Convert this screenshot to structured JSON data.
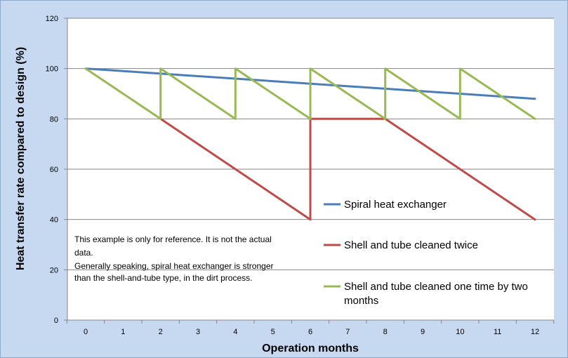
{
  "chart_data": {
    "type": "line",
    "xlabel": "Operation months",
    "ylabel": "Heat transfer rate compared to design  (%)",
    "xlim": [
      0,
      12
    ],
    "ylim": [
      0,
      120
    ],
    "x_ticks": [
      0,
      1,
      2,
      3,
      4,
      5,
      6,
      7,
      8,
      9,
      10,
      11,
      12
    ],
    "y_ticks": [
      0,
      20,
      40,
      60,
      80,
      100,
      120
    ],
    "grid": "horizontal",
    "legend_position": "right",
    "series": [
      {
        "name": "Spiral heat exchanger",
        "color": "#4a7ebb",
        "x": [
          0,
          12
        ],
        "y": [
          100,
          88
        ]
      },
      {
        "name": "Shell and tube cleaned twice",
        "color": "#be4b48",
        "x": [
          2,
          6,
          6,
          8,
          12
        ],
        "y": [
          80,
          40,
          80,
          80,
          40
        ]
      },
      {
        "name": "Shell and tube cleaned one time by two months",
        "color": "#98b954",
        "x": [
          0,
          2,
          2,
          4,
          4,
          6,
          6,
          8,
          8,
          10,
          10,
          12
        ],
        "y": [
          100,
          80,
          100,
          80,
          100,
          80,
          100,
          80,
          100,
          80,
          100,
          80
        ]
      }
    ],
    "annotation": [
      "This example is only for reference. It is not the actual",
      "data.",
      "Generally speaking, spiral heat exchanger is stronger",
      "than the shell-and-tube type, in the dirt process."
    ]
  }
}
